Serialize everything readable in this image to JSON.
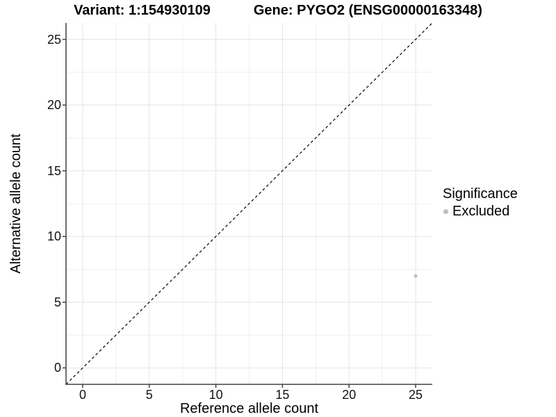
{
  "chart_data": {
    "type": "scatter",
    "title_parts": [
      "Variant: 1:154930109",
      "Gene: PYGO2 (ENSG00000163348)"
    ],
    "xlabel": "Reference allele count",
    "ylabel": "Alternative allele count",
    "x_ticks": [
      0,
      5,
      10,
      15,
      20,
      25
    ],
    "y_ticks": [
      0,
      5,
      10,
      15,
      20,
      25
    ],
    "x_minor": [
      2.5,
      7.5,
      12.5,
      17.5,
      22.5
    ],
    "y_minor": [
      2.5,
      7.5,
      12.5,
      17.5,
      22.5
    ],
    "xlim": [
      -1.25,
      26.25
    ],
    "ylim": [
      -1.25,
      26.25
    ],
    "grid": true,
    "series": [
      {
        "name": "Excluded",
        "marker": "circle",
        "color": "#bdbdbd",
        "points": [
          {
            "x": 25,
            "y": 7
          }
        ]
      }
    ],
    "reference_line": {
      "slope": 1,
      "intercept": 0,
      "style": "dashed",
      "color": "#000000"
    },
    "legend": {
      "title": "Significance",
      "position": "right",
      "items": [
        {
          "label": "Excluded",
          "color": "#bdbdbd",
          "marker": "circle"
        }
      ]
    },
    "colors": {
      "background": "#ffffff",
      "grid_major": "#e2e2e2",
      "grid_minor": "#efefef",
      "axis_line": "#404040",
      "tick_text": "#111111",
      "point": "#bdbdbd"
    }
  }
}
